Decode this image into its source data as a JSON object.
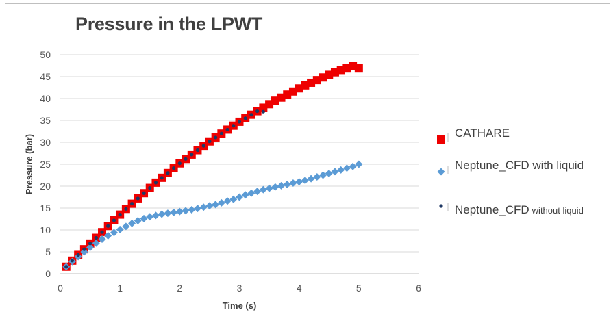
{
  "chart_data": {
    "type": "scatter",
    "title": "Pressure in the LPWT",
    "xlabel": "Time (s)",
    "ylabel": "Pressure (bar)",
    "xlim": [
      0,
      6
    ],
    "ylim": [
      0,
      50
    ],
    "xticks": [
      0,
      1,
      2,
      3,
      4,
      5,
      6
    ],
    "yticks": [
      0,
      5,
      10,
      15,
      20,
      25,
      30,
      35,
      40,
      45,
      50
    ],
    "grid": true,
    "legend_position": "right",
    "series": [
      {
        "name": "CATHARE",
        "marker": "square",
        "color": "#ee0000",
        "x": [
          0.1,
          0.2,
          0.3,
          0.4,
          0.5,
          0.6,
          0.7,
          0.8,
          0.9,
          1.0,
          1.1,
          1.2,
          1.3,
          1.4,
          1.5,
          1.6,
          1.7,
          1.8,
          1.9,
          2.0,
          2.1,
          2.2,
          2.3,
          2.4,
          2.5,
          2.6,
          2.7,
          2.8,
          2.9,
          3.0,
          3.1,
          3.2,
          3.3,
          3.4,
          3.5,
          3.6,
          3.7,
          3.8,
          3.9,
          4.0,
          4.1,
          4.2,
          4.3,
          4.4,
          4.5,
          4.6,
          4.7,
          4.8,
          4.9,
          5.0
        ],
        "y": [
          1.6,
          3.0,
          4.3,
          5.6,
          6.9,
          8.2,
          9.5,
          10.9,
          12.2,
          13.5,
          14.8,
          16.0,
          17.2,
          18.4,
          19.6,
          20.8,
          21.9,
          23.0,
          24.1,
          25.2,
          26.2,
          27.2,
          28.2,
          29.2,
          30.2,
          31.1,
          32.0,
          32.9,
          33.8,
          34.7,
          35.5,
          36.3,
          37.1,
          37.9,
          38.7,
          39.5,
          40.2,
          40.9,
          41.6,
          42.3,
          43.0,
          43.6,
          44.2,
          44.8,
          45.4,
          46.0,
          46.5,
          47.0,
          47.4,
          47.0
        ]
      },
      {
        "name": "Neptune_CFD with liquid",
        "marker": "diamond",
        "color": "#5b9bd5",
        "x": [
          0.1,
          0.2,
          0.3,
          0.4,
          0.5,
          0.6,
          0.7,
          0.8,
          0.9,
          1.0,
          1.1,
          1.2,
          1.3,
          1.4,
          1.5,
          1.6,
          1.7,
          1.8,
          1.9,
          2.0,
          2.1,
          2.2,
          2.3,
          2.4,
          2.5,
          2.6,
          2.7,
          2.8,
          2.9,
          3.0,
          3.1,
          3.2,
          3.3,
          3.4,
          3.5,
          3.6,
          3.7,
          3.8,
          3.9,
          4.0,
          4.1,
          4.2,
          4.3,
          4.4,
          4.5,
          4.6,
          4.7,
          4.8,
          4.9,
          5.0
        ],
        "y": [
          1.6,
          2.8,
          3.9,
          5.0,
          6.0,
          7.0,
          7.9,
          8.7,
          9.4,
          10.1,
          10.8,
          11.5,
          12.1,
          12.6,
          13.0,
          13.3,
          13.6,
          13.8,
          14.0,
          14.2,
          14.4,
          14.6,
          14.9,
          15.2,
          15.5,
          15.8,
          16.2,
          16.6,
          17.0,
          17.5,
          18.0,
          18.4,
          18.8,
          19.2,
          19.5,
          19.8,
          20.1,
          20.4,
          20.7,
          21.0,
          21.3,
          21.7,
          22.1,
          22.5,
          22.9,
          23.3,
          23.7,
          24.1,
          24.5,
          25.0
        ]
      },
      {
        "name": "Neptune_CFD",
        "name_suffix": "without liquid",
        "marker": "circle",
        "color": "#1f3864",
        "x": [
          0.1,
          0.2,
          0.3,
          0.4,
          0.5,
          0.6,
          0.7,
          0.8,
          0.9,
          1.0,
          1.1,
          1.2,
          1.3,
          1.4,
          1.5,
          1.6,
          1.7,
          1.8,
          1.9,
          2.0,
          2.1,
          2.2,
          2.3,
          2.4,
          2.5,
          2.6,
          2.7,
          2.8,
          2.9,
          3.0,
          3.1,
          3.2,
          3.3,
          3.4
        ],
        "y": [
          1.6,
          3.0,
          4.3,
          5.6,
          6.9,
          8.2,
          9.5,
          10.9,
          12.2,
          13.5,
          14.8,
          16.0,
          17.2,
          18.4,
          19.6,
          20.8,
          21.9,
          23.0,
          24.1,
          25.2,
          26.2,
          27.2,
          28.2,
          29.2,
          30.2,
          31.1,
          32.0,
          32.9,
          33.8,
          34.7,
          35.5,
          36.3,
          37.1,
          37.0
        ]
      }
    ]
  }
}
